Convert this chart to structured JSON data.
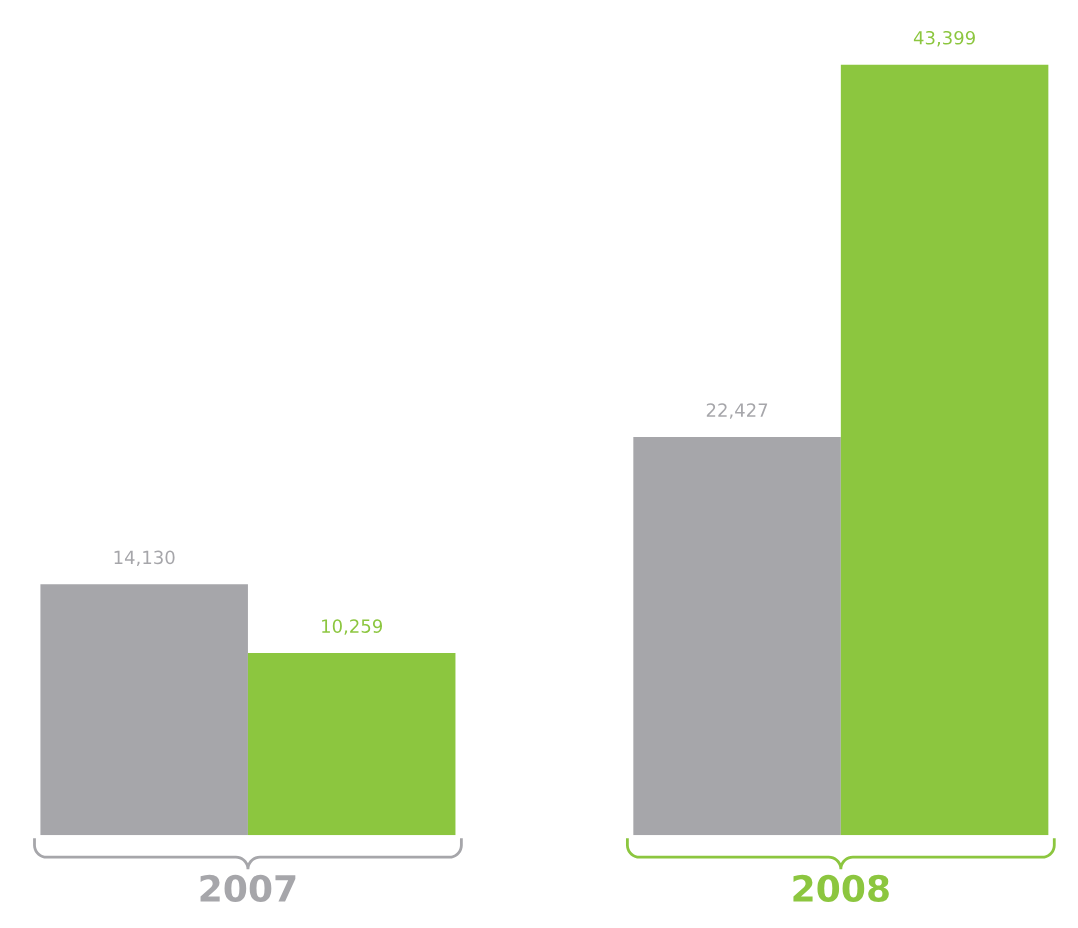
{
  "chart_data": {
    "type": "bar",
    "categories": [
      "2007",
      "2008"
    ],
    "series": [
      {
        "color": "#a6a6aa",
        "values": [
          14130,
          22427
        ],
        "value_labels": [
          "14,130",
          "22,427"
        ]
      },
      {
        "color": "#8cc63f",
        "values": [
          10259,
          43399
        ],
        "value_labels": [
          "10,259",
          "43,399"
        ]
      }
    ],
    "grid": false,
    "tick_labels": "x"
  }
}
